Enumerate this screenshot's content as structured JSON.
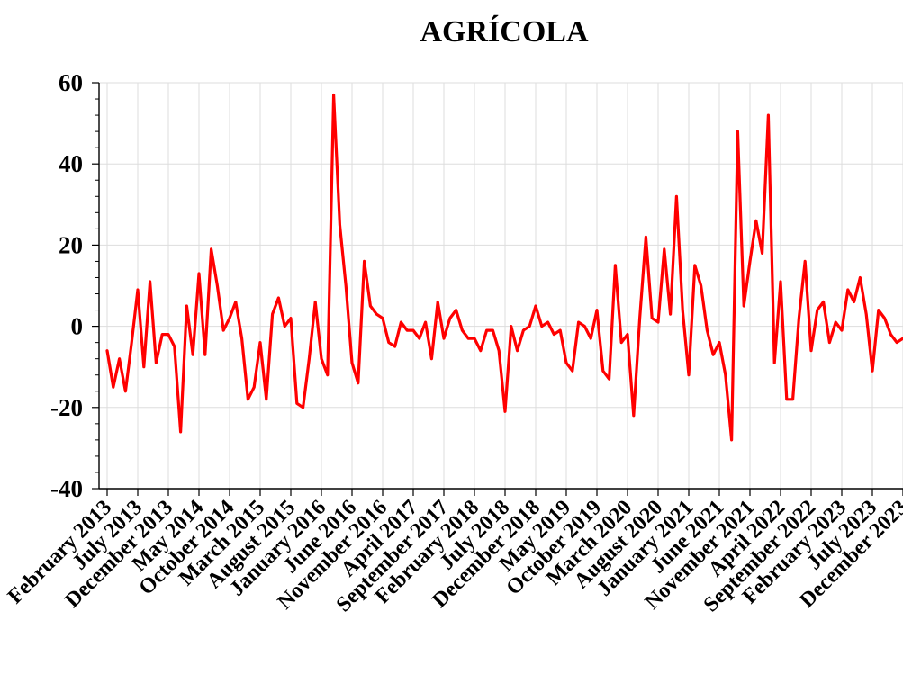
{
  "chart_data": {
    "type": "line",
    "title": "AGRÍCOLA",
    "xlabel": "",
    "ylabel": "",
    "ylim": [
      -40,
      60
    ],
    "yticks": [
      -40,
      -20,
      0,
      20,
      40,
      60
    ],
    "grid": true,
    "x_tick_labels": [
      "February 2013",
      "July 2013",
      "December 2013",
      "May 2014",
      "October 2014",
      "March 2015",
      "August 2015",
      "January 2016",
      "June 2016",
      "November 2016",
      "April 2017",
      "September 2017",
      "February 2018",
      "July 2018",
      "December 2018",
      "May 2019",
      "October 2019",
      "March 2020",
      "August 2020",
      "January 2021",
      "June 2021",
      "November 2021",
      "April 2022",
      "September 2022",
      "February 2023",
      "July 2023",
      "December 2023"
    ],
    "x_start": "2013-02",
    "colors": {
      "line": "#ff0000"
    },
    "series": [
      {
        "values": [
          -6,
          -15,
          -8,
          -16,
          -4,
          9,
          -10,
          11,
          -9,
          -2,
          -2,
          -5,
          -26,
          5,
          -7,
          13,
          -7,
          19,
          10,
          -1,
          2,
          6,
          -3,
          -18,
          -15,
          -4,
          -18,
          3,
          7,
          0,
          2,
          -19,
          -20,
          -8,
          6,
          -8,
          -12,
          57,
          25,
          10,
          -9,
          -14,
          16,
          5,
          3,
          2,
          -4,
          -5,
          1,
          -1,
          -1,
          -3,
          1,
          -8,
          6,
          -3,
          2,
          4,
          -1,
          -3,
          -3,
          -6,
          -1,
          -1,
          -6,
          -21,
          0,
          -6,
          -1,
          0,
          5,
          0,
          1,
          -2,
          -1,
          -9,
          -11,
          1,
          0,
          -3,
          4,
          -11,
          -13,
          15,
          -4,
          -2,
          -22,
          2,
          22,
          2,
          1,
          19,
          3,
          32,
          4,
          -12,
          15,
          10,
          -1,
          -7,
          -4,
          -12,
          -28,
          48,
          5,
          16,
          26,
          18,
          52,
          -9,
          11,
          -18,
          -18,
          2,
          16,
          -6,
          4,
          6,
          -4,
          1,
          -1,
          9,
          6,
          12,
          3,
          -11,
          4,
          2,
          -2,
          -4,
          -3,
          -4
        ]
      }
    ]
  }
}
